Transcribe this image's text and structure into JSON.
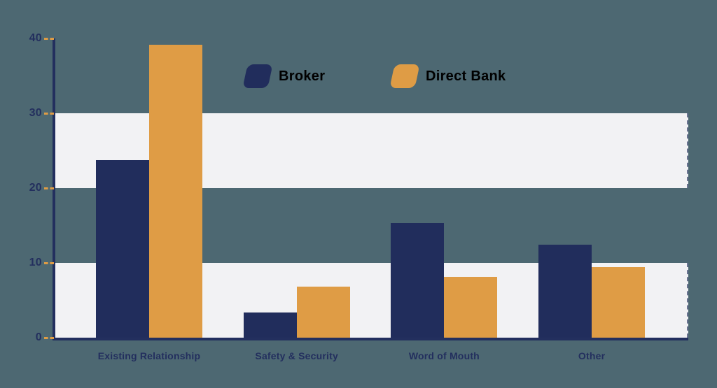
{
  "chart_data": {
    "type": "bar",
    "title": "",
    "xlabel": "",
    "ylabel": "",
    "categories": [
      "Existing Relationship",
      "Safety & Security",
      "Word of Mouth",
      "Other"
    ],
    "series": [
      {
        "name": "Broker",
        "color": "#212d5c",
        "values": [
          23.7,
          3.4,
          15.3,
          12.4
        ]
      },
      {
        "name": "Direct Bank",
        "color": "#df9c45",
        "values": [
          39.2,
          6.8,
          8.1,
          9.4
        ]
      }
    ],
    "yticks": [
      0,
      10,
      20,
      30,
      40
    ],
    "ylim": [
      0,
      40
    ],
    "grid_bands": [
      [
        0,
        10
      ],
      [
        20,
        30
      ]
    ],
    "legend_position": "top",
    "grid": "horizontal-bands"
  },
  "colors": {
    "background": "#4d6872",
    "band": "#f2f2f4",
    "axis": "#232f5e",
    "text": "#232f5e",
    "tick_dash": "#df9c45"
  }
}
